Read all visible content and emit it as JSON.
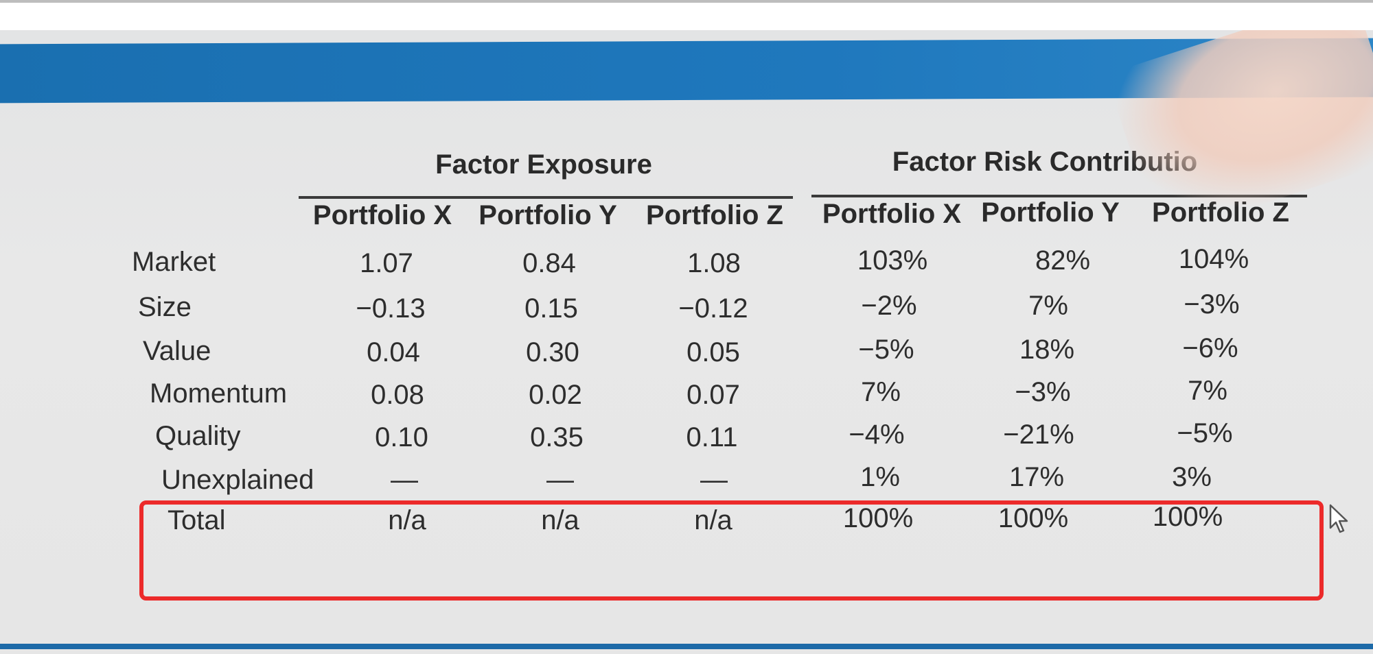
{
  "table": {
    "groups": {
      "exposure": "Factor Exposure",
      "risk": "Factor Risk Contributio"
    },
    "columns": [
      "Portfolio X",
      "Portfolio Y",
      "Portfolio Z",
      "Portfolio X",
      "Portfolio Y",
      "Portfolio Z"
    ],
    "rows": [
      {
        "label": "Market",
        "values": [
          "1.07",
          "0.84",
          "1.08",
          "103%",
          "82%",
          "104%"
        ]
      },
      {
        "label": "Size",
        "values": [
          "−0.13",
          "0.15",
          "−0.12",
          "−2%",
          "7%",
          "−3%"
        ]
      },
      {
        "label": "Value",
        "values": [
          "0.04",
          "0.30",
          "0.05",
          "−5%",
          "18%",
          "−6%"
        ]
      },
      {
        "label": "Momentum",
        "values": [
          "0.08",
          "0.02",
          "0.07",
          "7%",
          "−3%",
          "7%"
        ]
      },
      {
        "label": "Quality",
        "values": [
          "0.10",
          "0.35",
          "0.11",
          "−4%",
          "−21%",
          "−5%"
        ]
      },
      {
        "label": "Unexplained",
        "values": [
          "—",
          "—",
          "—",
          "1%",
          "17%",
          "3%"
        ]
      },
      {
        "label": "Total",
        "values": [
          "n/a",
          "n/a",
          "n/a",
          "100%",
          "100%",
          "100%"
        ]
      }
    ]
  },
  "colors": {
    "highlight": "#ec2a2a",
    "band": "#1f78bd"
  },
  "icons": {
    "cursor": "mouse-pointer-icon"
  }
}
